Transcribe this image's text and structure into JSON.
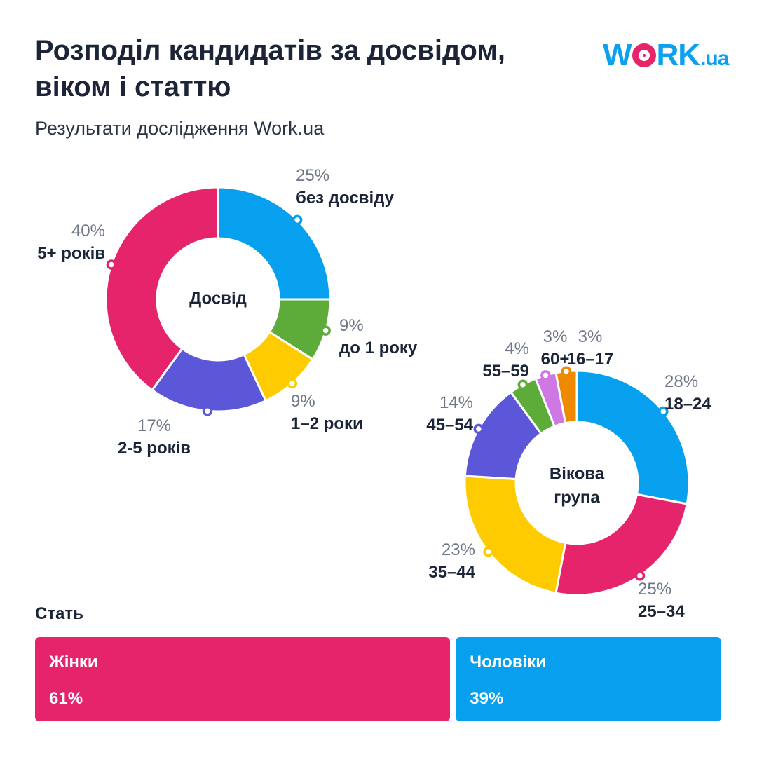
{
  "header": {
    "title_line1": "Розподіл кандидатів за досвідом,",
    "title_line2": "віком і статтю",
    "subtitle": "Результати дослідження Work.ua"
  },
  "logo": {
    "text_main": "W",
    "text_rest": "RK",
    "text_suffix": ".ua",
    "color": "#0ca0ee",
    "accent": "#e5246b"
  },
  "chart_data": [
    {
      "type": "pie",
      "center_label": [
        "Досвід"
      ],
      "slices": [
        {
          "label": "без досвіду",
          "value": 25,
          "value_label": "25%",
          "color": "#06a0ee"
        },
        {
          "label": "до 1 року",
          "value": 9,
          "value_label": "9%",
          "color": "#5dac3a"
        },
        {
          "label": "1–2 роки",
          "value": 9,
          "value_label": "9%",
          "color": "#fecb00"
        },
        {
          "label": "2-5 років",
          "value": 17,
          "value_label": "17%",
          "color": "#5b57d8"
        },
        {
          "label": "5+ років",
          "value": 40,
          "value_label": "40%",
          "color": "#e5246b"
        }
      ]
    },
    {
      "type": "pie",
      "center_label": [
        "Вікова",
        "група"
      ],
      "slices": [
        {
          "label": "18–24",
          "value": 28,
          "value_label": "28%",
          "color": "#06a0ee"
        },
        {
          "label": "25–34",
          "value": 25,
          "value_label": "25%",
          "color": "#e5246b"
        },
        {
          "label": "35–44",
          "value": 23,
          "value_label": "23%",
          "color": "#fecb00"
        },
        {
          "label": "45–54",
          "value": 14,
          "value_label": "14%",
          "color": "#5b57d8"
        },
        {
          "label": "55–59",
          "value": 4,
          "value_label": "4%",
          "color": "#5dac3a"
        },
        {
          "label": "60+",
          "value": 3,
          "value_label": "3%",
          "color": "#cf77e3"
        },
        {
          "label": "16–17",
          "value": 3,
          "value_label": "3%",
          "color": "#ef8a00"
        }
      ]
    },
    {
      "type": "bar",
      "title": "Стать",
      "categories": [
        "Жінки",
        "Чоловіки"
      ],
      "values": [
        61,
        39
      ],
      "value_labels": [
        "61%",
        "39%"
      ],
      "colors": [
        "#e5246b",
        "#06a0ee"
      ]
    }
  ]
}
